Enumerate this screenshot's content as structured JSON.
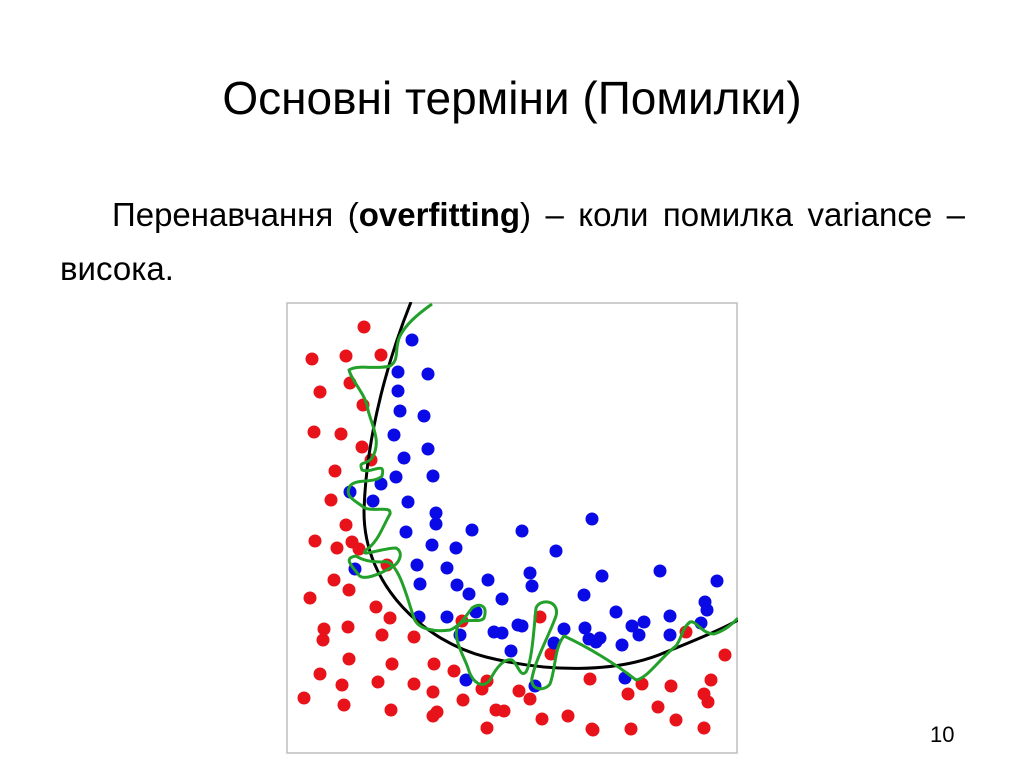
{
  "slide": {
    "title": "Основні терміни (Помилки)",
    "body": {
      "part1": "Перенавчання (",
      "bold": "overfitting",
      "part2": ") – коли помилка variance – висока."
    },
    "page_number": "10"
  },
  "colors": {
    "class_a": "#e8131a",
    "class_b": "#0a0ae6",
    "smooth_boundary": "#000000",
    "overfit_boundary": "#22a02a",
    "frame": "#bfbfbf"
  },
  "chart_data": {
    "type": "scatter",
    "title": "",
    "xlabel": "",
    "ylabel": "",
    "xlim": [
      0,
      450
    ],
    "ylim": [
      0,
      450
    ],
    "grid": false,
    "legend": null,
    "annotations": [
      "black curve: smooth decision boundary",
      "green curve: overfitted decision boundary"
    ],
    "series": [
      {
        "name": "red",
        "color": "#e8131a",
        "points": [
          [
            78,
            25
          ],
          [
            26,
            57
          ],
          [
            60,
            54
          ],
          [
            95,
            53
          ],
          [
            34,
            90
          ],
          [
            64,
            81
          ],
          [
            77,
            103
          ],
          [
            28,
            130
          ],
          [
            55,
            132
          ],
          [
            76,
            145
          ],
          [
            85,
            158
          ],
          [
            49,
            169
          ],
          [
            45,
            198
          ],
          [
            60,
            223
          ],
          [
            29,
            239
          ],
          [
            51,
            246
          ],
          [
            66,
            240
          ],
          [
            73,
            247
          ],
          [
            101,
            263
          ],
          [
            48,
            278
          ],
          [
            63,
            288
          ],
          [
            24,
            296
          ],
          [
            90,
            305
          ],
          [
            104,
            316
          ],
          [
            38,
            327
          ],
          [
            37,
            338
          ],
          [
            62,
            325
          ],
          [
            96,
            333
          ],
          [
            128,
            335
          ],
          [
            63,
            357
          ],
          [
            106,
            362
          ],
          [
            34,
            372
          ],
          [
            56,
            383
          ],
          [
            92,
            380
          ],
          [
            128,
            382
          ],
          [
            147,
            390
          ],
          [
            18,
            396
          ],
          [
            58,
            403
          ],
          [
            105,
            408
          ],
          [
            147,
            414
          ],
          [
            151,
            410
          ],
          [
            177,
            398
          ],
          [
            196,
            387
          ],
          [
            168,
            369
          ],
          [
            148,
            362
          ],
          [
            201,
            379
          ],
          [
            210,
            408
          ],
          [
            218,
            409
          ],
          [
            201,
            426
          ],
          [
            244,
            397
          ],
          [
            233,
            389
          ],
          [
            254,
            315
          ],
          [
            265,
            352
          ],
          [
            304,
            377
          ],
          [
            282,
            414
          ],
          [
            307,
            428
          ],
          [
            342,
            392
          ],
          [
            372,
            405
          ],
          [
            390,
            418
          ],
          [
            356,
            382
          ],
          [
            385,
            384
          ],
          [
            306,
            427
          ],
          [
            418,
            392
          ],
          [
            439,
            353
          ],
          [
            422,
            400
          ],
          [
            425,
            378
          ],
          [
            418,
            426
          ],
          [
            400,
            330
          ],
          [
            176,
            319
          ],
          [
            256,
            417
          ],
          [
            345,
            427
          ]
        ]
      },
      {
        "name": "blue",
        "color": "#0a0ae6",
        "points": [
          [
            126,
            38
          ],
          [
            112,
            70
          ],
          [
            142,
            72
          ],
          [
            112,
            89
          ],
          [
            114,
            109
          ],
          [
            138,
            114
          ],
          [
            108,
            133
          ],
          [
            142,
            147
          ],
          [
            118,
            156
          ],
          [
            110,
            175
          ],
          [
            147,
            174
          ],
          [
            95,
            182
          ],
          [
            64,
            190
          ],
          [
            87,
            199
          ],
          [
            122,
            200
          ],
          [
            150,
            211
          ],
          [
            150,
            222
          ],
          [
            120,
            230
          ],
          [
            146,
            243
          ],
          [
            170,
            246
          ],
          [
            186,
            228
          ],
          [
            236,
            229
          ],
          [
            270,
            249
          ],
          [
            306,
            217
          ],
          [
            131,
            263
          ],
          [
            161,
            266
          ],
          [
            69,
            267
          ],
          [
            134,
            282
          ],
          [
            171,
            283
          ],
          [
            183,
            292
          ],
          [
            202,
            278
          ],
          [
            244,
            271
          ],
          [
            246,
            284
          ],
          [
            216,
            297
          ],
          [
            298,
            293
          ],
          [
            316,
            274
          ],
          [
            374,
            269
          ],
          [
            431,
            279
          ],
          [
            190,
            310
          ],
          [
            232,
            323
          ],
          [
            161,
            315
          ],
          [
            133,
            315
          ],
          [
            174,
            333
          ],
          [
            216,
            331
          ],
          [
            278,
            327
          ],
          [
            299,
            326
          ],
          [
            310,
            340
          ],
          [
            314,
            336
          ],
          [
            330,
            310
          ],
          [
            336,
            343
          ],
          [
            346,
            324
          ],
          [
            353,
            333
          ],
          [
            358,
            320
          ],
          [
            384,
            314
          ],
          [
            384,
            333
          ],
          [
            419,
            300
          ],
          [
            421,
            308
          ],
          [
            415,
            321
          ],
          [
            225,
            349
          ],
          [
            268,
            341
          ],
          [
            180,
            378
          ],
          [
            249,
            384
          ],
          [
            339,
            376
          ],
          [
            303,
            337
          ],
          [
            236,
            324
          ],
          [
            208,
            330
          ]
        ]
      }
    ]
  }
}
